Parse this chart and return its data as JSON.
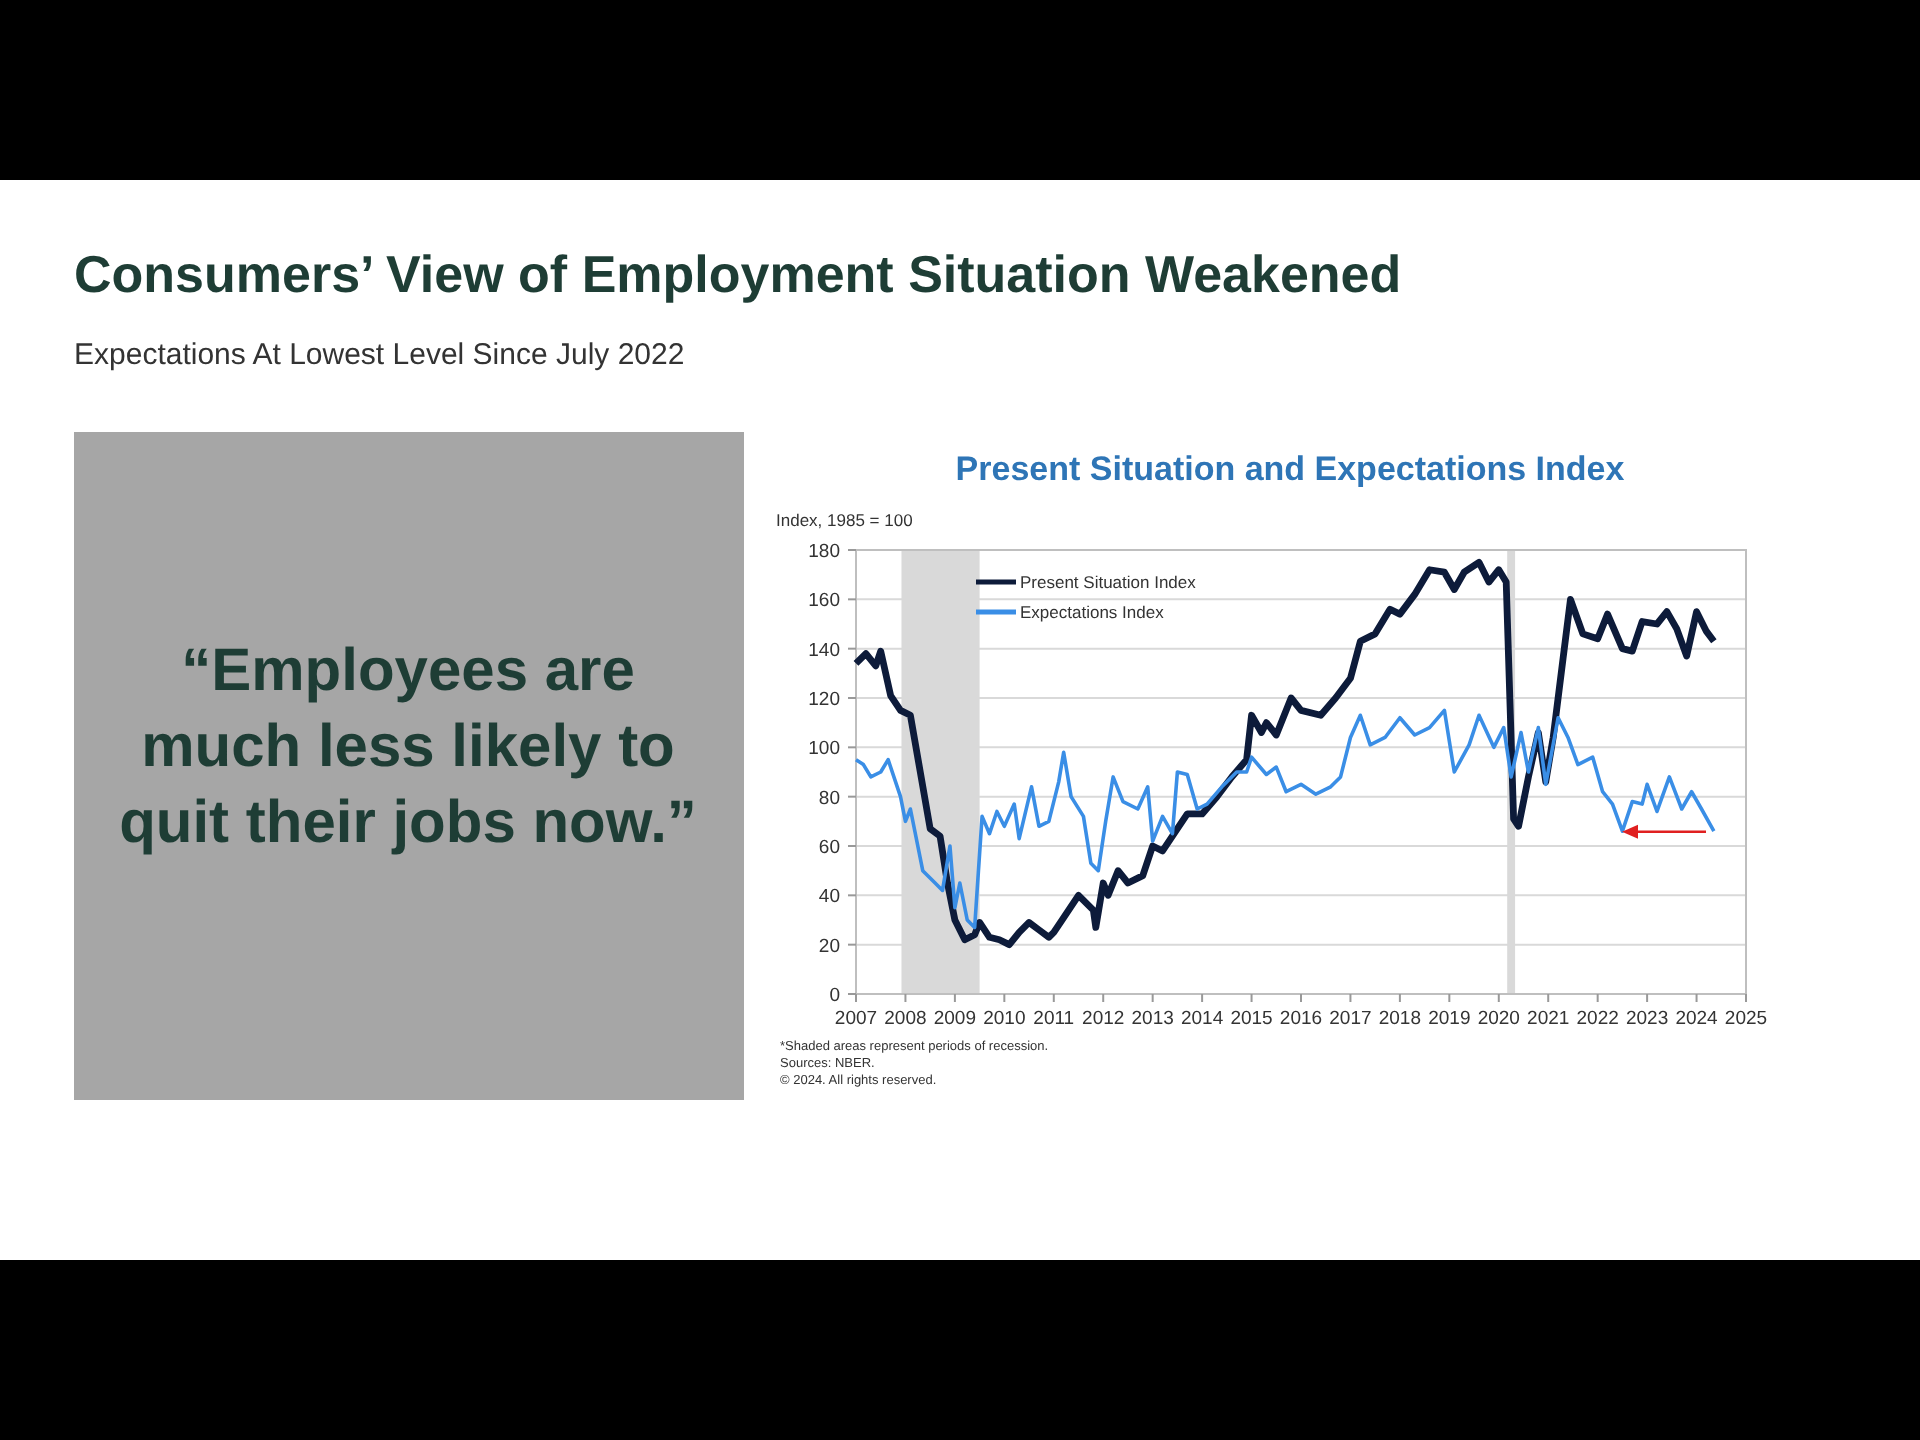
{
  "chart_data": {
    "type": "line",
    "title": "Consumers’ View of Employment Situation Weakened",
    "subtitle": "Expectations At Lowest Level Since July 2022",
    "ylabel": "Index, 1985 = 100",
    "annotations": [
      "Present Situation and Expectations Index",
      "“Employees are much less likely to quit their jobs now.”",
      "*Shaded areas represent periods of recession.",
      "Sources: NBER.",
      "© 2024. All rights reserved."
    ],
    "xlim": [
      2007,
      2025
    ],
    "xticks": [
      2007,
      2008,
      2009,
      2010,
      2011,
      2012,
      2013,
      2014,
      2015,
      2016,
      2017,
      2018,
      2019,
      2020,
      2021,
      2022,
      2023,
      2024,
      2025
    ],
    "ylim": [
      0,
      180
    ],
    "yticks": [
      0,
      20,
      40,
      60,
      80,
      100,
      120,
      140,
      160,
      180
    ],
    "grid": "y",
    "legend": "top left",
    "line_style": "solid",
    "marker": "none",
    "bands": [
      {
        "axis": "x",
        "from": 2007.92,
        "to": 2009.5,
        "color": "#d9d9d9"
      },
      {
        "axis": "x",
        "from": 2020.17,
        "to": 2020.33,
        "color": "#d9d9d9"
      }
    ],
    "series": [
      {
        "name": "Present Situation Index",
        "color": "#0d1b3a",
        "x": [
          2007,
          2007.2,
          2007.4,
          2007.5,
          2007.7,
          2007.9,
          2008.1,
          2008.3,
          2008.5,
          2008.7,
          2008.85,
          2009,
          2009.2,
          2009.4,
          2009.5,
          2009.7,
          2009.9,
          2010.1,
          2010.3,
          2010.5,
          2010.7,
          2010.9,
          2011,
          2011.2,
          2011.5,
          2011.8,
          2011.85,
          2012,
          2012.1,
          2012.3,
          2012.5,
          2012.8,
          2013,
          2013.2,
          2013.5,
          2013.7,
          2014,
          2014.3,
          2014.6,
          2014.9,
          2015,
          2015.2,
          2015.3,
          2015.5,
          2015.8,
          2016,
          2016.4,
          2016.7,
          2017,
          2017.2,
          2017.5,
          2017.8,
          2018,
          2018.3,
          2018.6,
          2018.9,
          2019.1,
          2019.3,
          2019.6,
          2019.8,
          2020,
          2020.15,
          2020.3,
          2020.4,
          2020.6,
          2020.8,
          2020.95,
          2021.1,
          2021.3,
          2021.45,
          2021.7,
          2022,
          2022.2,
          2022.5,
          2022.7,
          2022.9,
          2023.2,
          2023.4,
          2023.6,
          2023.8,
          2024,
          2024.2,
          2024.35
        ],
        "values": [
          134,
          138,
          133,
          139,
          121,
          115,
          113,
          90,
          67,
          64,
          45,
          30,
          22,
          24,
          29,
          23,
          22,
          20,
          25,
          29,
          26,
          23,
          25,
          31,
          40,
          34,
          27,
          45,
          40,
          50,
          45,
          48,
          60,
          58,
          67,
          73,
          73,
          80,
          88,
          95,
          113,
          106,
          110,
          105,
          120,
          115,
          113,
          120,
          128,
          143,
          146,
          156,
          154,
          162,
          172,
          171,
          164,
          171,
          175,
          167,
          172,
          167,
          71,
          68,
          88,
          106,
          86,
          104,
          136,
          160,
          146,
          144,
          154,
          140,
          139,
          151,
          150,
          155,
          148,
          137,
          155,
          147,
          143
        ]
      },
      {
        "name": "Expectations Index",
        "color": "#3a8ee6",
        "x": [
          2007,
          2007.15,
          2007.3,
          2007.5,
          2007.65,
          2007.9,
          2008,
          2008.1,
          2008.35,
          2008.6,
          2008.75,
          2008.9,
          2009,
          2009.1,
          2009.25,
          2009.4,
          2009.55,
          2009.7,
          2009.85,
          2010,
          2010.2,
          2010.3,
          2010.55,
          2010.7,
          2010.9,
          2011.1,
          2011.2,
          2011.35,
          2011.6,
          2011.75,
          2011.9,
          2012.05,
          2012.2,
          2012.4,
          2012.7,
          2012.9,
          2013,
          2013.2,
          2013.4,
          2013.5,
          2013.7,
          2013.9,
          2014.1,
          2014.4,
          2014.7,
          2014.9,
          2015,
          2015.3,
          2015.5,
          2015.7,
          2016,
          2016.3,
          2016.6,
          2016.8,
          2017,
          2017.2,
          2017.4,
          2017.7,
          2018,
          2018.3,
          2018.6,
          2018.9,
          2019.1,
          2019.4,
          2019.6,
          2019.9,
          2020.1,
          2020.25,
          2020.45,
          2020.6,
          2020.8,
          2020.95,
          2021.2,
          2021.4,
          2021.6,
          2021.9,
          2022.1,
          2022.3,
          2022.5,
          2022.7,
          2022.9,
          2023,
          2023.2,
          2023.45,
          2023.7,
          2023.9,
          2024.1,
          2024.35
        ],
        "values": [
          95,
          93,
          88,
          90,
          95,
          80,
          70,
          75,
          50,
          45,
          42,
          60,
          35,
          45,
          30,
          27,
          72,
          65,
          74,
          68,
          77,
          63,
          84,
          68,
          70,
          86,
          98,
          80,
          72,
          53,
          50,
          70,
          88,
          78,
          75,
          84,
          62,
          72,
          65,
          90,
          89,
          75,
          77,
          84,
          90,
          90,
          96,
          89,
          92,
          82,
          85,
          81,
          84,
          88,
          104,
          113,
          101,
          104,
          112,
          105,
          108,
          115,
          90,
          101,
          113,
          100,
          108,
          88,
          106,
          90,
          108,
          85,
          112,
          104,
          93,
          96,
          82,
          77,
          66,
          78,
          77,
          85,
          74,
          88,
          75,
          82,
          75,
          66
        ]
      }
    ]
  }
}
